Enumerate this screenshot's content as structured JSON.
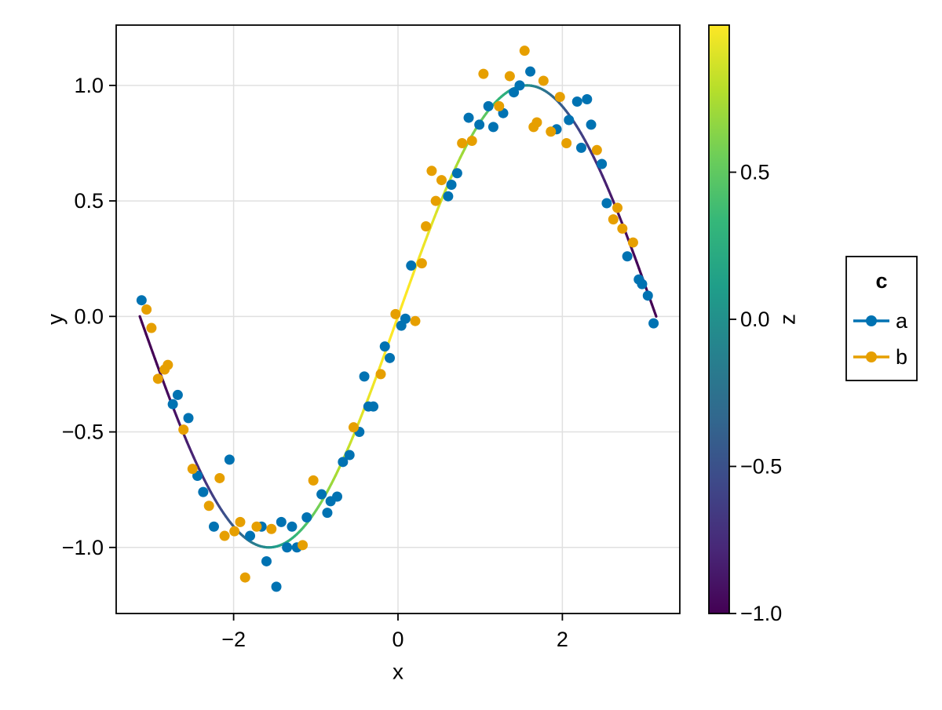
{
  "figure": {
    "background": "#ffffff"
  },
  "chart_data": {
    "type": "scatter",
    "title": "",
    "xlabel": "x",
    "ylabel": "y",
    "xlim": [
      -3.429,
      3.429
    ],
    "ylim": [
      -1.286,
      1.261
    ],
    "grid": true,
    "xticks": {
      "values": [
        -2,
        0,
        2
      ],
      "labels": [
        "−2",
        "0",
        "2"
      ]
    },
    "yticks": {
      "values": [
        -1.0,
        -0.5,
        0.0,
        0.5,
        1.0
      ],
      "labels": [
        "−1.0",
        "−0.5",
        "0.0",
        "0.5",
        "1.0"
      ]
    },
    "curve": {
      "description": "line y=sin(x) colored by z=cos(x) with viridis colormap",
      "y_fn": "sin",
      "color_fn": "cos",
      "x_range": [
        -3.14159,
        3.14159
      ],
      "samples": 240,
      "color_lim": [
        -1,
        1
      ],
      "width": 3.2
    },
    "series": [
      {
        "name": "a",
        "color": "#0072B2",
        "marker": "circle",
        "marker_radius": 6.5,
        "points": [
          [
            -3.12,
            0.07
          ],
          [
            -2.74,
            -0.38
          ],
          [
            -2.68,
            -0.34
          ],
          [
            -2.55,
            -0.44
          ],
          [
            -2.44,
            -0.69
          ],
          [
            -2.37,
            -0.76
          ],
          [
            -2.24,
            -0.91
          ],
          [
            -2.05,
            -0.62
          ],
          [
            -1.8,
            -0.95
          ],
          [
            -1.66,
            -0.91
          ],
          [
            -1.6,
            -1.06
          ],
          [
            -1.48,
            -1.17
          ],
          [
            -1.42,
            -0.89
          ],
          [
            -1.35,
            -1.0
          ],
          [
            -1.29,
            -0.91
          ],
          [
            -1.23,
            -1.0
          ],
          [
            -1.11,
            -0.87
          ],
          [
            -0.93,
            -0.77
          ],
          [
            -0.86,
            -0.85
          ],
          [
            -0.82,
            -0.8
          ],
          [
            -0.74,
            -0.78
          ],
          [
            -0.67,
            -0.63
          ],
          [
            -0.59,
            -0.6
          ],
          [
            -0.47,
            -0.5
          ],
          [
            -0.41,
            -0.26
          ],
          [
            -0.36,
            -0.39
          ],
          [
            -0.3,
            -0.39
          ],
          [
            -0.16,
            -0.13
          ],
          [
            -0.1,
            -0.18
          ],
          [
            0.04,
            -0.04
          ],
          [
            0.09,
            -0.01
          ],
          [
            0.16,
            0.22
          ],
          [
            0.61,
            0.52
          ],
          [
            0.65,
            0.57
          ],
          [
            0.72,
            0.62
          ],
          [
            0.86,
            0.86
          ],
          [
            0.99,
            0.83
          ],
          [
            1.1,
            0.91
          ],
          [
            1.16,
            0.82
          ],
          [
            1.28,
            0.88
          ],
          [
            1.41,
            0.97
          ],
          [
            1.48,
            1.0
          ],
          [
            1.61,
            1.06
          ],
          [
            1.93,
            0.81
          ],
          [
            2.08,
            0.85
          ],
          [
            2.18,
            0.93
          ],
          [
            2.23,
            0.73
          ],
          [
            2.3,
            0.94
          ],
          [
            2.35,
            0.83
          ],
          [
            2.48,
            0.66
          ],
          [
            2.54,
            0.49
          ],
          [
            2.79,
            0.26
          ],
          [
            2.93,
            0.16
          ],
          [
            2.97,
            0.14
          ],
          [
            3.04,
            0.09
          ],
          [
            3.11,
            -0.03
          ]
        ]
      },
      {
        "name": "b",
        "color": "#E69F00",
        "marker": "circle",
        "marker_radius": 6.5,
        "points": [
          [
            -3.06,
            0.03
          ],
          [
            -3.0,
            -0.05
          ],
          [
            -2.92,
            -0.27
          ],
          [
            -2.84,
            -0.23
          ],
          [
            -2.8,
            -0.21
          ],
          [
            -2.61,
            -0.49
          ],
          [
            -2.5,
            -0.66
          ],
          [
            -2.3,
            -0.82
          ],
          [
            -2.17,
            -0.7
          ],
          [
            -2.11,
            -0.95
          ],
          [
            -1.99,
            -0.93
          ],
          [
            -1.92,
            -0.89
          ],
          [
            -1.86,
            -1.13
          ],
          [
            -1.72,
            -0.91
          ],
          [
            -1.54,
            -0.92
          ],
          [
            -1.16,
            -0.99
          ],
          [
            -1.03,
            -0.71
          ],
          [
            -0.54,
            -0.48
          ],
          [
            -0.21,
            -0.25
          ],
          [
            -0.03,
            0.01
          ],
          [
            0.21,
            -0.02
          ],
          [
            0.29,
            0.23
          ],
          [
            0.34,
            0.39
          ],
          [
            0.46,
            0.5
          ],
          [
            0.41,
            0.63
          ],
          [
            0.53,
            0.59
          ],
          [
            0.78,
            0.75
          ],
          [
            0.9,
            0.76
          ],
          [
            1.04,
            1.05
          ],
          [
            1.23,
            0.91
          ],
          [
            1.36,
            1.04
          ],
          [
            1.54,
            1.15
          ],
          [
            1.65,
            0.82
          ],
          [
            1.69,
            0.84
          ],
          [
            1.77,
            1.02
          ],
          [
            1.86,
            0.8
          ],
          [
            1.97,
            0.95
          ],
          [
            2.05,
            0.75
          ],
          [
            2.42,
            0.72
          ],
          [
            2.62,
            0.42
          ],
          [
            2.67,
            0.47
          ],
          [
            2.73,
            0.38
          ],
          [
            2.86,
            0.32
          ]
        ]
      }
    ],
    "colorbar": {
      "label": "z",
      "lim": [
        -1,
        1
      ],
      "colormap": "viridis",
      "ticks": {
        "values": [
          -1.0,
          -0.5,
          0.0,
          0.5
        ],
        "labels": [
          "−1.0",
          "−0.5",
          "0.0",
          "0.5"
        ]
      }
    },
    "legend": {
      "title": "c",
      "position": "right",
      "entries": [
        {
          "label": "a",
          "color": "#0072B2"
        },
        {
          "label": "b",
          "color": "#E69F00"
        }
      ]
    },
    "colormap_stops": [
      "#440154",
      "#482878",
      "#3e4989",
      "#31688e",
      "#26828e",
      "#1f9e89",
      "#35b779",
      "#6ece58",
      "#b5de2b",
      "#fde725"
    ],
    "style": {
      "grid_color": "#e0e0e0",
      "spine_color": "#000000",
      "tick_color": "#000000",
      "text_color": "#000000",
      "background": "#ffffff",
      "tick_font_size": 27,
      "label_font_size": 28,
      "legend_font_size": 27
    }
  }
}
